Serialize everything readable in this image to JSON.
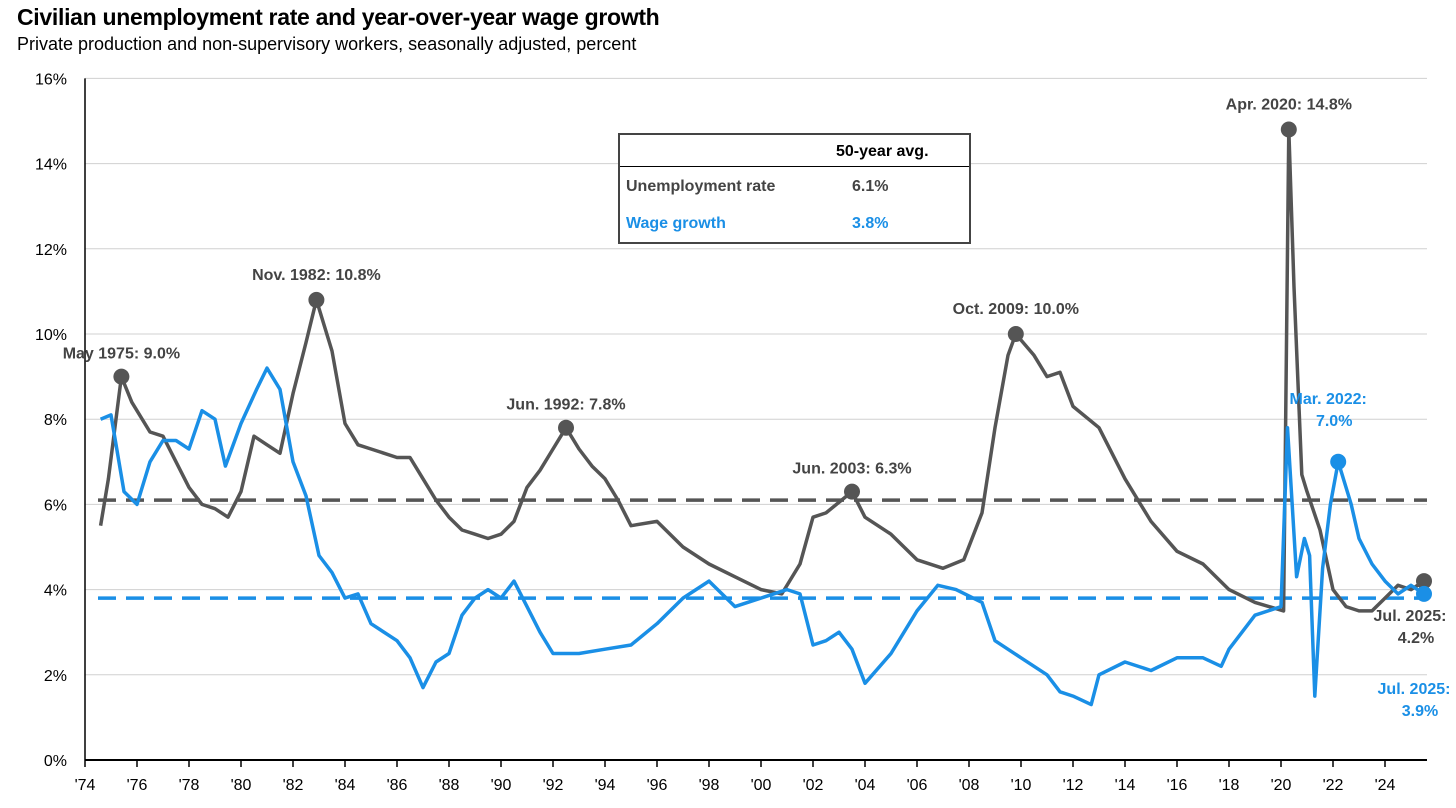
{
  "title": "Civilian unemployment rate and year-over-year wage growth",
  "subtitle": "Private production and non-supervisory workers, seasonally adjusted, percent",
  "colors": {
    "unemployment": "#555555",
    "wage": "#1a8fe6",
    "grid": "#d0d0d0"
  },
  "table": {
    "header": "50-year avg.",
    "rows": [
      {
        "label": "Unemployment rate",
        "value": "6.1%",
        "color": "#444444"
      },
      {
        "label": "Wage growth",
        "value": "3.8%",
        "color": "#1a8fe6"
      }
    ]
  },
  "chart_data": {
    "type": "line",
    "title": "Civilian unemployment rate and year-over-year wage growth",
    "xlabel": "",
    "ylabel": "",
    "xlim": [
      1974,
      2025.8
    ],
    "ylim": [
      0,
      16
    ],
    "y_ticks": [
      "0%",
      "2%",
      "4%",
      "6%",
      "8%",
      "10%",
      "12%",
      "14%",
      "16%"
    ],
    "x_ticks": [
      "'74",
      "'76",
      "'78",
      "'80",
      "'82",
      "'84",
      "'86",
      "'88",
      "'90",
      "'92",
      "'94",
      "'96",
      "'98",
      "'00",
      "'02",
      "'04",
      "'06",
      "'08",
      "'10",
      "'12",
      "'14",
      "'16",
      "'18",
      "'20",
      "'22",
      "'24"
    ],
    "grid": true,
    "series": [
      {
        "name": "Unemployment rate",
        "average": 6.1,
        "x": [
          1974.6,
          1974.9,
          1975.4,
          1975.8,
          1976.5,
          1977,
          1977.5,
          1978,
          1978.5,
          1979,
          1979.5,
          1980,
          1980.5,
          1981,
          1981.5,
          1982,
          1982.5,
          1982.9,
          1983.5,
          1984,
          1984.5,
          1985,
          1986,
          1986.5,
          1987,
          1987.5,
          1988,
          1988.5,
          1989,
          1989.5,
          1990,
          1990.5,
          1991,
          1991.5,
          1992,
          1992.5,
          1993,
          1993.5,
          1994,
          1994.5,
          1995,
          1996,
          1997,
          1998,
          1999,
          2000,
          2000.8,
          2001.5,
          2002,
          2002.5,
          2003.5,
          2004,
          2005,
          2006,
          2007,
          2007.8,
          2008.5,
          2009,
          2009.5,
          2009.8,
          2010.5,
          2011,
          2011.5,
          2012,
          2013,
          2014,
          2015,
          2016,
          2017,
          2018,
          2019,
          2020.1,
          2020.3,
          2020.5,
          2020.8,
          2021,
          2021.5,
          2022,
          2022.5,
          2023,
          2023.5,
          2024,
          2024.5,
          2025,
          2025.5
        ],
        "y": [
          5.5,
          6.6,
          9.0,
          8.4,
          7.7,
          7.6,
          7.0,
          6.4,
          6.0,
          5.9,
          5.7,
          6.3,
          7.6,
          7.4,
          7.2,
          8.6,
          9.8,
          10.8,
          9.6,
          7.9,
          7.4,
          7.3,
          7.1,
          7.1,
          6.6,
          6.1,
          5.7,
          5.4,
          5.3,
          5.2,
          5.3,
          5.6,
          6.4,
          6.8,
          7.3,
          7.8,
          7.3,
          6.9,
          6.6,
          6.1,
          5.5,
          5.6,
          5.0,
          4.6,
          4.3,
          4.0,
          3.9,
          4.6,
          5.7,
          5.8,
          6.3,
          5.7,
          5.3,
          4.7,
          4.5,
          4.7,
          5.8,
          7.8,
          9.5,
          10.0,
          9.5,
          9.0,
          9.1,
          8.3,
          7.8,
          6.6,
          5.6,
          4.9,
          4.6,
          4.0,
          3.7,
          3.5,
          14.8,
          11.1,
          6.7,
          6.3,
          5.4,
          4.0,
          3.6,
          3.5,
          3.5,
          3.8,
          4.1,
          4.0,
          4.2
        ],
        "annotations": [
          {
            "x": 1975.4,
            "y": 9.0,
            "label": "May 1975: 9.0%"
          },
          {
            "x": 1982.9,
            "y": 10.8,
            "label": "Nov. 1982: 10.8%"
          },
          {
            "x": 1992.5,
            "y": 7.8,
            "label": "Jun. 1992: 7.8%"
          },
          {
            "x": 2003.5,
            "y": 6.3,
            "label": "Jun. 2003: 6.3%"
          },
          {
            "x": 2009.8,
            "y": 10.0,
            "label": "Oct. 2009: 10.0%"
          },
          {
            "x": 2020.3,
            "y": 14.8,
            "label": "Apr. 2020: 14.8%"
          },
          {
            "x": 2025.5,
            "y": 4.2,
            "label": "Jul. 2025:",
            "label2": "4.2%"
          }
        ]
      },
      {
        "name": "Wage growth",
        "average": 3.8,
        "x": [
          1974.6,
          1975,
          1975.5,
          1976,
          1976.5,
          1977,
          1977.5,
          1978,
          1978.5,
          1979,
          1979.4,
          1980,
          1980.6,
          1981,
          1981.5,
          1982,
          1982.5,
          1983,
          1983.5,
          1984,
          1984.5,
          1985,
          1986,
          1986.5,
          1987,
          1987.5,
          1988,
          1988.5,
          1989,
          1989.5,
          1990,
          1990.5,
          1991,
          1991.5,
          1992,
          1993,
          1994,
          1995,
          1996,
          1997,
          1998,
          1999,
          2000,
          2001,
          2001.5,
          2002,
          2002.5,
          2003,
          2003.5,
          2004,
          2005,
          2006,
          2006.8,
          2007.5,
          2008.5,
          2009,
          2010,
          2011,
          2011.5,
          2012,
          2012.7,
          2013,
          2014,
          2015,
          2016,
          2017,
          2017.7,
          2018,
          2019,
          2020,
          2020.25,
          2020.6,
          2020.9,
          2021.1,
          2021.3,
          2021.6,
          2021.9,
          2022.2,
          2022.7,
          2023,
          2023.5,
          2024,
          2024.5,
          2025,
          2025.5
        ],
        "y": [
          8.0,
          8.1,
          6.3,
          6.0,
          7.0,
          7.5,
          7.5,
          7.3,
          8.2,
          8.0,
          6.9,
          7.9,
          8.7,
          9.2,
          8.7,
          7.0,
          6.2,
          4.8,
          4.4,
          3.8,
          3.9,
          3.2,
          2.8,
          2.4,
          1.7,
          2.3,
          2.5,
          3.4,
          3.8,
          4.0,
          3.8,
          4.2,
          3.6,
          3.0,
          2.5,
          2.5,
          2.6,
          2.7,
          3.2,
          3.8,
          4.2,
          3.6,
          3.8,
          4.0,
          3.9,
          2.7,
          2.8,
          3.0,
          2.6,
          1.8,
          2.5,
          3.5,
          4.1,
          4.0,
          3.7,
          2.8,
          2.4,
          2.0,
          1.6,
          1.5,
          1.3,
          2.0,
          2.3,
          2.1,
          2.4,
          2.4,
          2.2,
          2.6,
          3.4,
          3.6,
          7.8,
          4.3,
          5.2,
          4.8,
          1.5,
          4.5,
          6.0,
          7.0,
          6.0,
          5.2,
          4.6,
          4.2,
          3.9,
          4.1,
          3.9
        ],
        "annotations": [
          {
            "x": 2022.2,
            "y": 7.0,
            "label": "Mar. 2022:",
            "label2": "7.0%"
          },
          {
            "x": 2025.5,
            "y": 3.9,
            "label": "Jul. 2025:",
            "label2": "3.9%"
          }
        ]
      }
    ]
  }
}
